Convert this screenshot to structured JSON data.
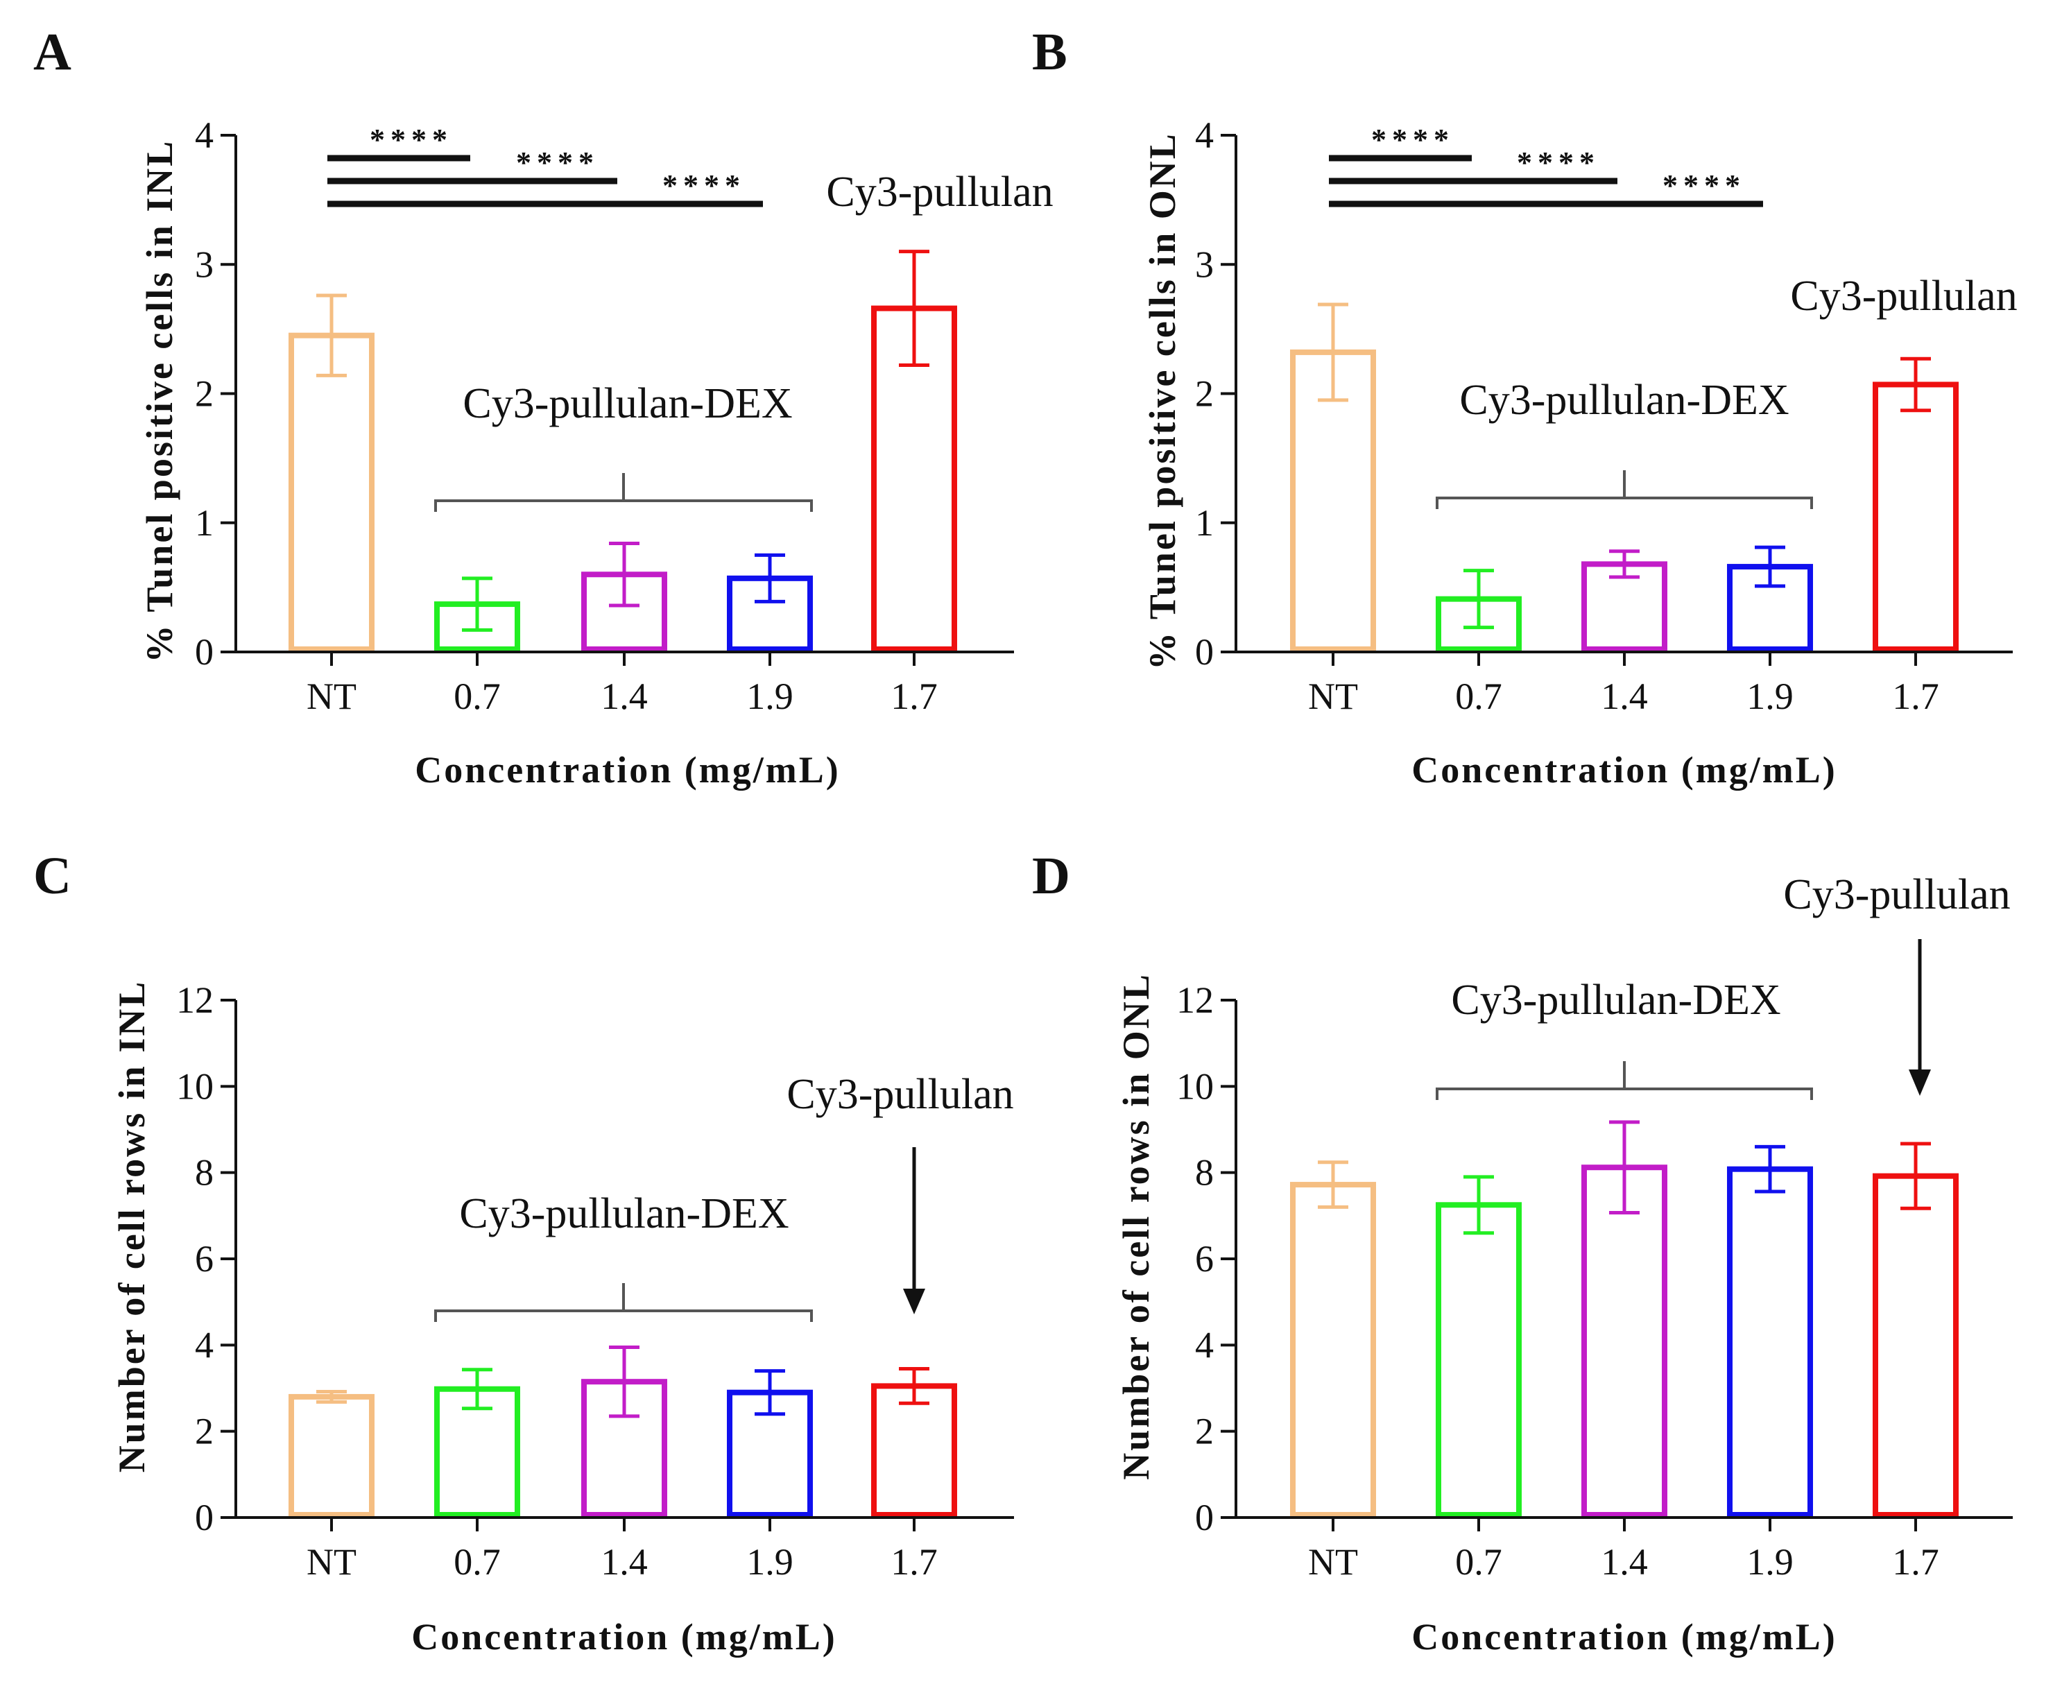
{
  "colors": {
    "NT": "#F5BE82",
    "0.7": "#22EE22",
    "1.4": "#C21DC8",
    "1.9": "#1010EE",
    "1.7": "#EE1010",
    "axis": "#111111",
    "bracket": "#555555"
  },
  "chart_data": [
    {
      "panel": "A",
      "type": "bar",
      "categories": [
        "NT",
        "0.7",
        "1.4",
        "1.9",
        "1.7"
      ],
      "values": [
        2.45,
        0.37,
        0.6,
        0.57,
        2.66
      ],
      "errors": [
        0.31,
        0.2,
        0.24,
        0.18,
        0.44
      ],
      "ylabel": "% Tunel positive cells in INL",
      "xlabel": "Concentration (mg/mL)",
      "ylim": [
        0,
        4
      ],
      "yticks": [
        0,
        1,
        2,
        3,
        4
      ],
      "bracket_label": "Cy3-pullulan-DEX",
      "single_label": "Cy3-pullulan",
      "significance": [
        {
          "from": "NT",
          "to": "0.7",
          "label": "****"
        },
        {
          "from": "NT",
          "to": "1.4",
          "label": "****"
        },
        {
          "from": "NT",
          "to": "1.9",
          "label": "****"
        }
      ]
    },
    {
      "panel": "B",
      "type": "bar",
      "categories": [
        "NT",
        "0.7",
        "1.4",
        "1.9",
        "1.7"
      ],
      "values": [
        2.32,
        0.41,
        0.68,
        0.66,
        2.07
      ],
      "errors": [
        0.37,
        0.22,
        0.1,
        0.15,
        0.2
      ],
      "ylabel": "% Tunel positive cells in ONL",
      "xlabel": "Concentration (mg/mL)",
      "ylim": [
        0,
        4
      ],
      "yticks": [
        0,
        1,
        2,
        3,
        4
      ],
      "bracket_label": "Cy3-pullulan-DEX",
      "single_label": "Cy3-pullulan",
      "significance": [
        {
          "from": "NT",
          "to": "0.7",
          "label": "****"
        },
        {
          "from": "NT",
          "to": "1.4",
          "label": "****"
        },
        {
          "from": "NT",
          "to": "1.9",
          "label": "****"
        }
      ]
    },
    {
      "panel": "C",
      "type": "bar",
      "categories": [
        "NT",
        "0.7",
        "1.4",
        "1.9",
        "1.7"
      ],
      "values": [
        2.8,
        2.98,
        3.15,
        2.9,
        3.05
      ],
      "errors": [
        0.12,
        0.45,
        0.8,
        0.5,
        0.4
      ],
      "ylabel": "Number of cell rows in INL",
      "xlabel": "Concentration (mg/mL)",
      "ylim": [
        0,
        12
      ],
      "yticks": [
        0,
        2,
        4,
        6,
        8,
        10,
        12
      ],
      "bracket_label": "Cy3-pullulan-DEX",
      "single_label": "Cy3-pullulan"
    },
    {
      "panel": "D",
      "type": "bar",
      "categories": [
        "NT",
        "0.7",
        "1.4",
        "1.9",
        "1.7"
      ],
      "values": [
        7.72,
        7.25,
        8.12,
        8.08,
        7.92
      ],
      "errors": [
        0.52,
        0.65,
        1.05,
        0.52,
        0.75
      ],
      "ylabel": "Number of cell rows in ONL",
      "xlabel": "Concentration (mg/mL)",
      "ylim": [
        0,
        12
      ],
      "yticks": [
        0,
        2,
        4,
        6,
        8,
        10,
        12
      ],
      "bracket_label": "Cy3-pullulan-DEX",
      "single_label": "Cy3-pullulan"
    }
  ]
}
